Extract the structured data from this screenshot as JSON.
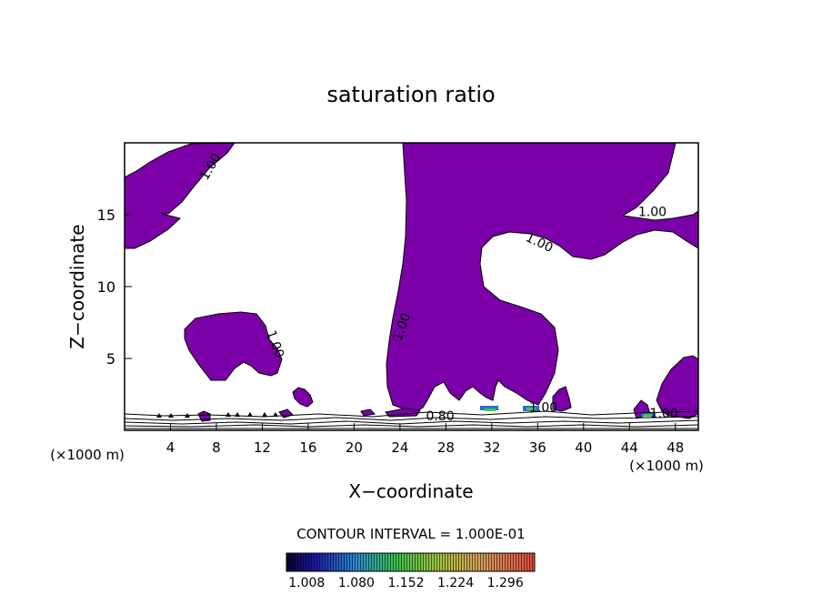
{
  "chart_data": {
    "type": "contour",
    "title": "saturation ratio",
    "xlabel": "X−coordinate",
    "ylabel": "Z−coordinate",
    "x_unit_label": "(×1000 m)",
    "x_unit_label_right": "(×1000 m)",
    "xlim": [
      0,
      50
    ],
    "ylim": [
      0,
      20
    ],
    "x_ticks": [
      4,
      8,
      12,
      16,
      20,
      24,
      28,
      32,
      36,
      40,
      44,
      48
    ],
    "y_ticks": [
      5,
      10,
      15
    ],
    "contour_labels": [
      {
        "text": "1.00",
        "x": 7.8,
        "y": 18.2,
        "angle": -60
      },
      {
        "text": "1.00",
        "x": 46.0,
        "y": 14.9,
        "angle": 0
      },
      {
        "text": "1.00",
        "x": 36.0,
        "y": 12.8,
        "angle": 25
      },
      {
        "text": "1.00",
        "x": 24.5,
        "y": 7.1,
        "angle": -70
      },
      {
        "text": "1.00",
        "x": 12.8,
        "y": 5.9,
        "angle": 70
      },
      {
        "text": "1.00",
        "x": 36.5,
        "y": 1.3,
        "angle": 0
      },
      {
        "text": "1.00",
        "x": 47.0,
        "y": 0.9,
        "angle": 0
      },
      {
        "text": "0.80",
        "x": 27.5,
        "y": 0.7,
        "angle": 0
      }
    ],
    "contour_interval_text": "CONTOUR INTERVAL = 1.000E-01",
    "colorbar_ticks": [
      "1.008",
      "1.080",
      "1.152",
      "1.224",
      "1.296"
    ],
    "fill_color": "#7b00a8"
  }
}
